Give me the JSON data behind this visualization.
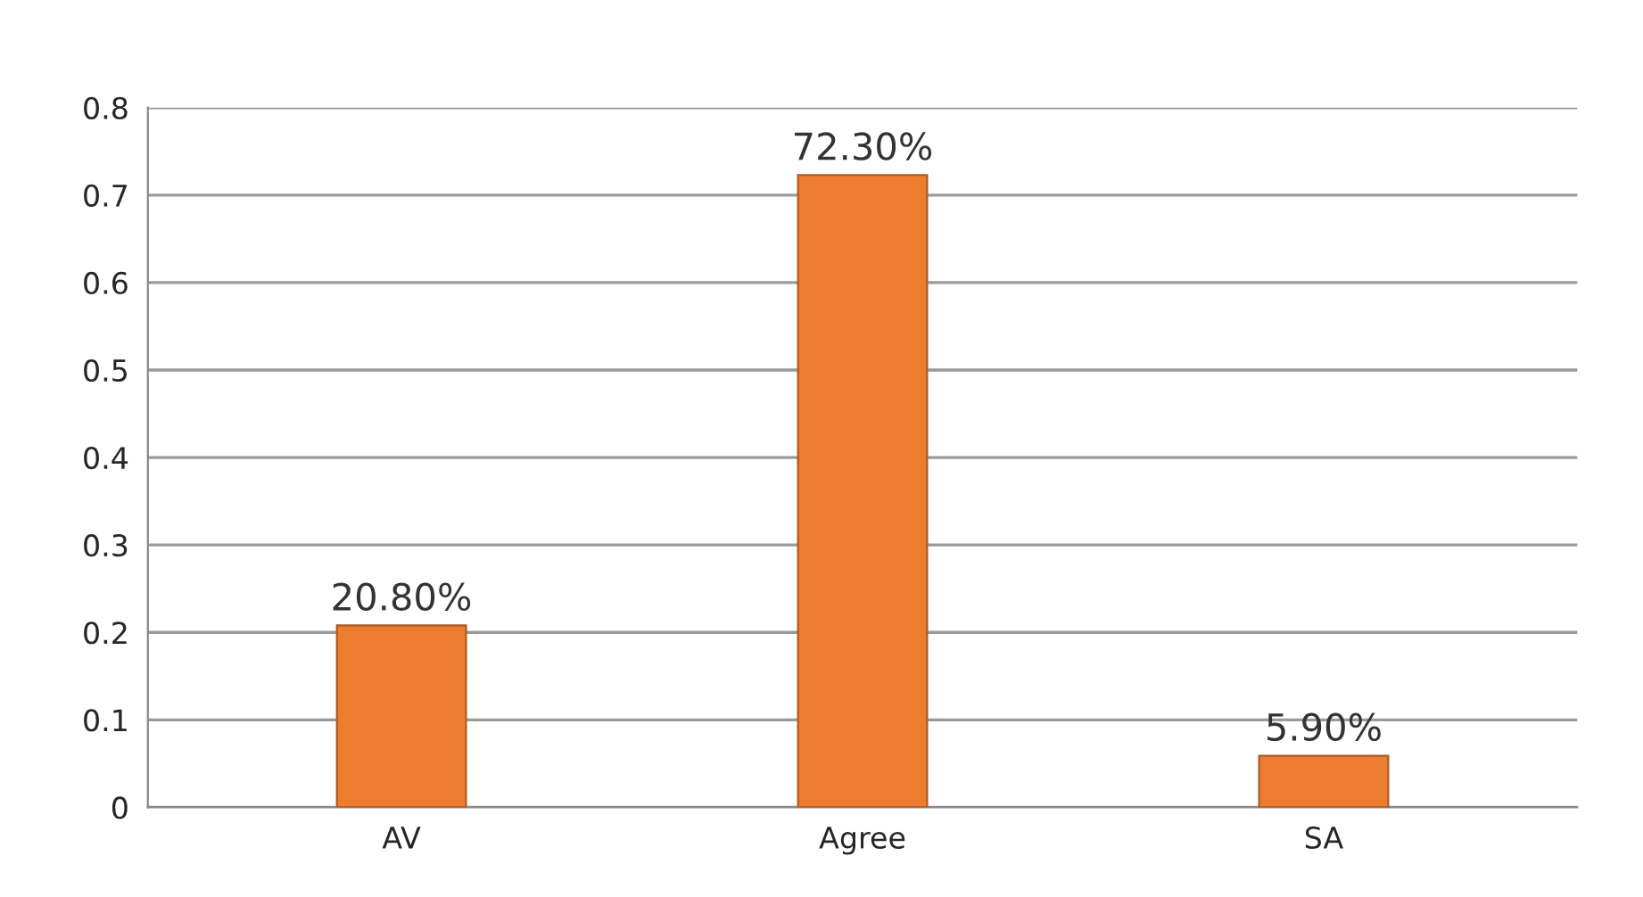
{
  "chart_data": {
    "type": "bar",
    "categories": [
      "AV",
      "Agree",
      "SA"
    ],
    "values": [
      0.208,
      0.723,
      0.059
    ],
    "value_labels": [
      "20.80%",
      "72.30%",
      "5.90%"
    ],
    "color": "#ed7d31",
    "ylim": [
      0,
      0.8
    ],
    "yticks": [
      0,
      0.1,
      0.2,
      0.3,
      0.4,
      0.5,
      0.6,
      0.7,
      0.8
    ],
    "grid": "y"
  }
}
